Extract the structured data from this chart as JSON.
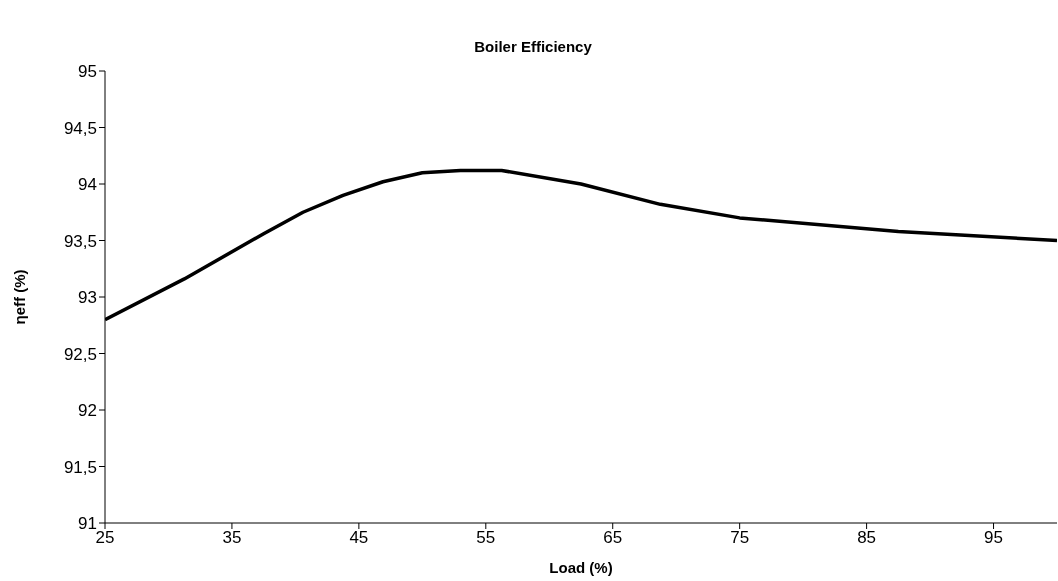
{
  "chart_data": {
    "type": "line",
    "title": "Boiler Efficiency",
    "xlabel": "Load (%)",
    "ylabel": "ηeff (%)",
    "x": [
      25,
      31.25,
      37.5,
      40.6,
      43.75,
      46.9,
      50,
      53,
      56.25,
      62.5,
      68.75,
      75,
      87.5,
      100
    ],
    "series": [
      {
        "color": "#000000",
        "values": [
          92.8,
          93.16,
          93.56,
          93.75,
          93.9,
          94.02,
          94.1,
          94.12,
          94.12,
          94.0,
          93.82,
          93.7,
          93.58,
          93.5
        ]
      }
    ],
    "xlim": [
      25,
      100
    ],
    "xticks": [
      25,
      35,
      45,
      55,
      65,
      75,
      85,
      95
    ],
    "ylim": [
      91,
      95
    ],
    "yticks": [
      91,
      {
        "value": 91.5,
        "label": "91,5"
      },
      92,
      {
        "value": 92.5,
        "label": "92,5"
      },
      93,
      {
        "value": 93.5,
        "label": "93,5"
      },
      94,
      {
        "value": 94.5,
        "label": "94,5"
      },
      95
    ],
    "grid": false,
    "legend": false,
    "marker": "none",
    "line_style": "solid"
  }
}
